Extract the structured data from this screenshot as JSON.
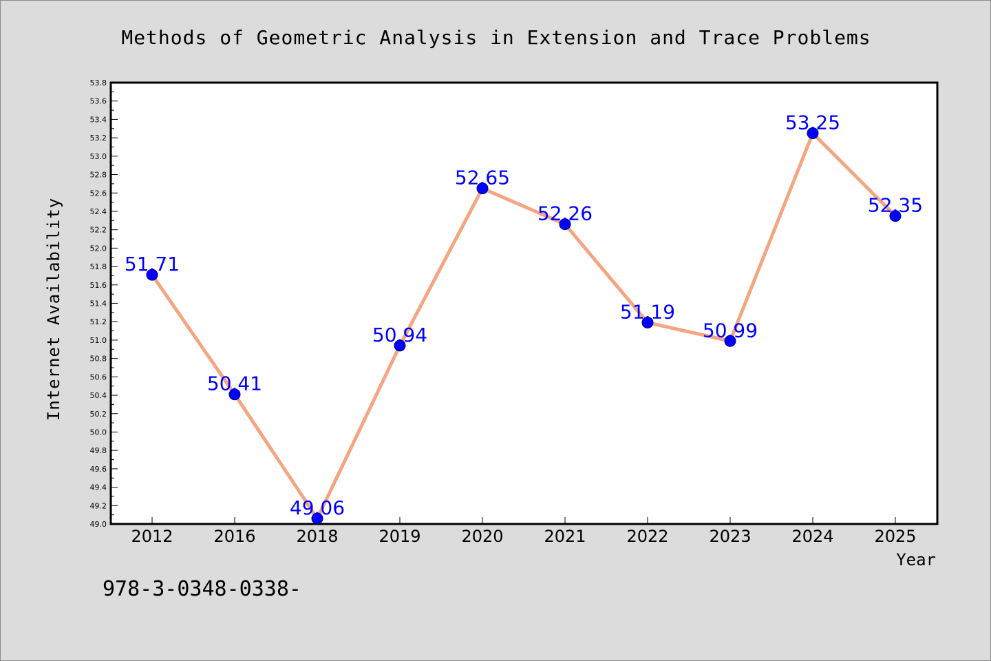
{
  "chart_data": {
    "type": "line",
    "title": "Methods of Geometric Analysis in Extension and Trace Problems",
    "xlabel": "Year",
    "ylabel": "Internet Availability",
    "categories": [
      "2012",
      "2016",
      "2018",
      "2019",
      "2020",
      "2021",
      "2022",
      "2023",
      "2024",
      "2025"
    ],
    "values": [
      51.71,
      50.41,
      49.06,
      50.94,
      52.65,
      52.26,
      51.19,
      50.99,
      53.25,
      52.35
    ],
    "data_labels": [
      "51.71",
      "50.41",
      "49.06",
      "50.94",
      "52.65",
      "52.26",
      "51.19",
      "50.99",
      "53.25",
      "52.35"
    ],
    "ylim": [
      49.0,
      53.8
    ],
    "yticks": [
      "49.0",
      "49.2",
      "49.4",
      "49.6",
      "49.8",
      "50.0",
      "50.2",
      "50.4",
      "50.6",
      "50.8",
      "51.0",
      "51.2",
      "51.4",
      "51.6",
      "51.8",
      "52.0",
      "52.2",
      "52.4",
      "52.6",
      "52.8",
      "53.0",
      "53.2",
      "53.4",
      "53.6",
      "53.8"
    ],
    "grid": false,
    "legend": "none",
    "colors": {
      "line": "#f4a582",
      "marker": "#0000ff",
      "label": "#0000ff",
      "background": "#dcdcdc",
      "plot_area": "#ffffff"
    }
  },
  "footer": {
    "isbn": "978-3-0348-0338-"
  }
}
